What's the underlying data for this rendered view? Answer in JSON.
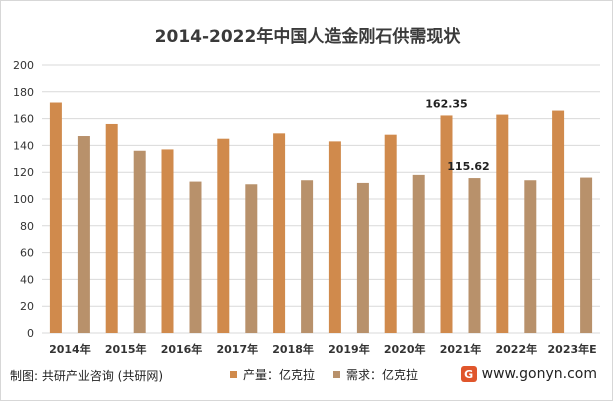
{
  "chart_data": {
    "type": "bar",
    "title": "2014-2022年中国人造金刚石供需现状",
    "categories": [
      "2014年",
      "2015年",
      "2016年",
      "2017年",
      "2018年",
      "2019年",
      "2020年",
      "2021年",
      "2022年",
      "2023年E"
    ],
    "series": [
      {
        "name": "产量：亿克拉",
        "color": "#d08a4c",
        "values": [
          172,
          156,
          137,
          145,
          149,
          143,
          148,
          162.35,
          163,
          166
        ]
      },
      {
        "name": "需求：亿克拉",
        "color": "#b8916b",
        "values": [
          147,
          136,
          113,
          111,
          114,
          112,
          118,
          115.62,
          114,
          116
        ]
      }
    ],
    "data_labels": [
      "162.35",
      "115.62"
    ],
    "ylim": [
      0,
      200
    ],
    "yticks": [
      0,
      20,
      40,
      60,
      80,
      100,
      120,
      140,
      160,
      180,
      200
    ],
    "grid": true,
    "legend_position": "bottom"
  },
  "footer": {
    "source": "制图: 共研产业咨询 (共研网)",
    "logo_text": "G",
    "website": "www.gonyn.com"
  }
}
